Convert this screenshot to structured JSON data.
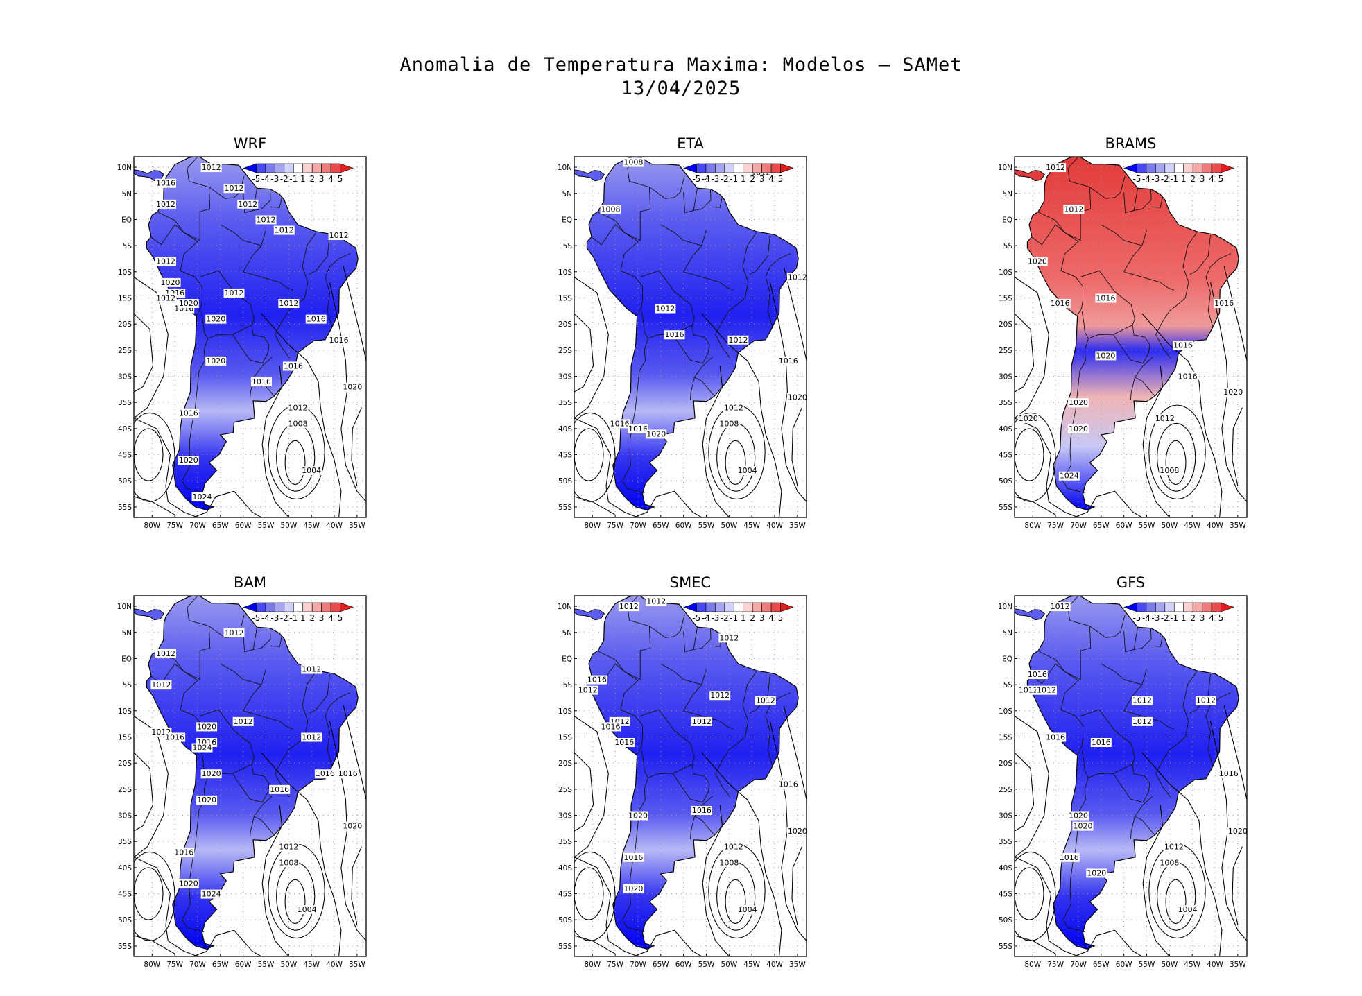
{
  "figure": {
    "title": "Anomalia de Temperatura Maxima: Modelos — SAMet",
    "date": "13/04/2025"
  },
  "colorbar": {
    "labels": [
      "-5",
      "-4",
      "-3",
      "-2",
      "-1",
      "1",
      "2",
      "3",
      "4",
      "5"
    ],
    "colors": [
      "#0000f0",
      "#4a4af4",
      "#7a7ae8",
      "#a6a6f0",
      "#d2d2fa",
      "#ffffff",
      "#fad2d2",
      "#f4a8a8",
      "#ee7c7c",
      "#e64c4c",
      "#e01e1e"
    ]
  },
  "axes": {
    "lon_ticks": [
      "80W",
      "75W",
      "70W",
      "65W",
      "60W",
      "55W",
      "50W",
      "45W",
      "40W",
      "35W"
    ],
    "lat_ticks": [
      "10N",
      "5N",
      "EQ",
      "5S",
      "10S",
      "15S",
      "20S",
      "25S",
      "30S",
      "35S",
      "40S",
      "45S",
      "50S",
      "55S"
    ]
  },
  "panels": [
    {
      "name": "WRF",
      "tone": "cool",
      "isobars": [
        {
          "label": "1012",
          "lon": -67,
          "lat": 10
        },
        {
          "label": "1016",
          "lon": -77,
          "lat": 7
        },
        {
          "label": "1012",
          "lon": -62,
          "lat": 6
        },
        {
          "label": "1012",
          "lon": -77,
          "lat": 3
        },
        {
          "label": "1012",
          "lon": -59,
          "lat": 3
        },
        {
          "label": "1012",
          "lon": -55,
          "lat": 0
        },
        {
          "label": "1012",
          "lon": -51,
          "lat": -2
        },
        {
          "label": "1012",
          "lon": -39,
          "lat": -3
        },
        {
          "label": "1012",
          "lon": -77,
          "lat": -8
        },
        {
          "label": "1020",
          "lon": -76,
          "lat": -12
        },
        {
          "label": "1016",
          "lon": -75,
          "lat": -14
        },
        {
          "label": "1012",
          "lon": -77,
          "lat": -15
        },
        {
          "label": "1012",
          "lon": -62,
          "lat": -14
        },
        {
          "label": "1016",
          "lon": -73,
          "lat": -17
        },
        {
          "label": "1020",
          "lon": -72,
          "lat": -16
        },
        {
          "label": "1020",
          "lon": -66,
          "lat": -19
        },
        {
          "label": "1012",
          "lon": -50,
          "lat": -16
        },
        {
          "label": "1016",
          "lon": -44,
          "lat": -19
        },
        {
          "label": "1016",
          "lon": -39,
          "lat": -23
        },
        {
          "label": "1020",
          "lon": -66,
          "lat": -27
        },
        {
          "label": "1016",
          "lon": -49,
          "lat": -28
        },
        {
          "label": "1016",
          "lon": -56,
          "lat": -31
        },
        {
          "label": "1020",
          "lon": -36,
          "lat": -32
        },
        {
          "label": "1012",
          "lon": -48,
          "lat": -36
        },
        {
          "label": "1016",
          "lon": -72,
          "lat": -37
        },
        {
          "label": "1008",
          "lon": -48,
          "lat": -39
        },
        {
          "label": "1020",
          "lon": -72,
          "lat": -46
        },
        {
          "label": "1004",
          "lon": -45,
          "lat": -48
        },
        {
          "label": "1024",
          "lon": -69,
          "lat": -53
        }
      ]
    },
    {
      "name": "ETA",
      "tone": "cool",
      "isobars": [
        {
          "label": "1008",
          "lon": -71,
          "lat": 11
        },
        {
          "label": "1012",
          "lon": -43,
          "lat": 9
        },
        {
          "label": "1008",
          "lon": -76,
          "lat": 2
        },
        {
          "label": "1012",
          "lon": -35,
          "lat": -11
        },
        {
          "label": "1012",
          "lon": -64,
          "lat": -17
        },
        {
          "label": "1016",
          "lon": -62,
          "lat": -22
        },
        {
          "label": "1012",
          "lon": -48,
          "lat": -23
        },
        {
          "label": "1016",
          "lon": -37,
          "lat": -27
        },
        {
          "label": "1020",
          "lon": -35,
          "lat": -34
        },
        {
          "label": "1012",
          "lon": -49,
          "lat": -36
        },
        {
          "label": "1016",
          "lon": -74,
          "lat": -39
        },
        {
          "label": "1008",
          "lon": -50,
          "lat": -39
        },
        {
          "label": "1016",
          "lon": -70,
          "lat": -40
        },
        {
          "label": "1020",
          "lon": -66,
          "lat": -41
        },
        {
          "label": "1004",
          "lon": -46,
          "lat": -48
        }
      ]
    },
    {
      "name": "BRAMS",
      "tone": "warm",
      "isobars": [
        {
          "label": "1012",
          "lon": -75,
          "lat": 10
        },
        {
          "label": "1012",
          "lon": -71,
          "lat": 2
        },
        {
          "label": "1020",
          "lon": -79,
          "lat": -8
        },
        {
          "label": "1016",
          "lon": -74,
          "lat": -16
        },
        {
          "label": "1016",
          "lon": -64,
          "lat": -15
        },
        {
          "label": "1016",
          "lon": -38,
          "lat": -16
        },
        {
          "label": "1020",
          "lon": -64,
          "lat": -26
        },
        {
          "label": "1016",
          "lon": -47,
          "lat": -24
        },
        {
          "label": "1016",
          "lon": -46,
          "lat": -30
        },
        {
          "label": "1020",
          "lon": -36,
          "lat": -33
        },
        {
          "label": "1020",
          "lon": -70,
          "lat": -35
        },
        {
          "label": "1020",
          "lon": -81,
          "lat": -38
        },
        {
          "label": "1012",
          "lon": -51,
          "lat": -38
        },
        {
          "label": "1020",
          "lon": -70,
          "lat": -40
        },
        {
          "label": "1024",
          "lon": -72,
          "lat": -49
        },
        {
          "label": "1008",
          "lon": -50,
          "lat": -48
        }
      ]
    },
    {
      "name": "BAM",
      "tone": "cool",
      "isobars": [
        {
          "label": "1012",
          "lon": -62,
          "lat": 5
        },
        {
          "label": "1012",
          "lon": -77,
          "lat": 1
        },
        {
          "label": "1012",
          "lon": -45,
          "lat": -2
        },
        {
          "label": "1012",
          "lon": -78,
          "lat": -5
        },
        {
          "label": "1020",
          "lon": -68,
          "lat": -13
        },
        {
          "label": "1012",
          "lon": -60,
          "lat": -12
        },
        {
          "label": "1012",
          "lon": -78,
          "lat": -14
        },
        {
          "label": "1016",
          "lon": -75,
          "lat": -15
        },
        {
          "label": "1012",
          "lon": -45,
          "lat": -15
        },
        {
          "label": "1016",
          "lon": -68,
          "lat": -16
        },
        {
          "label": "1024",
          "lon": -69,
          "lat": -17
        },
        {
          "label": "1020",
          "lon": -67,
          "lat": -22
        },
        {
          "label": "1016",
          "lon": -42,
          "lat": -22
        },
        {
          "label": "1016",
          "lon": -37,
          "lat": -22
        },
        {
          "label": "1016",
          "lon": -52,
          "lat": -25
        },
        {
          "label": "1020",
          "lon": -68,
          "lat": -27
        },
        {
          "label": "1020",
          "lon": -36,
          "lat": -32
        },
        {
          "label": "1012",
          "lon": -50,
          "lat": -36
        },
        {
          "label": "1016",
          "lon": -73,
          "lat": -37
        },
        {
          "label": "1008",
          "lon": -50,
          "lat": -39
        },
        {
          "label": "1020",
          "lon": -72,
          "lat": -43
        },
        {
          "label": "1024",
          "lon": -67,
          "lat": -45
        },
        {
          "label": "1004",
          "lon": -46,
          "lat": -48
        }
      ]
    },
    {
      "name": "SMEC",
      "tone": "cool",
      "isobars": [
        {
          "label": "1012",
          "lon": -66,
          "lat": 11
        },
        {
          "label": "1012",
          "lon": -72,
          "lat": 10
        },
        {
          "label": "1012",
          "lon": -50,
          "lat": 4
        },
        {
          "label": "1016",
          "lon": -79,
          "lat": -4
        },
        {
          "label": "1012",
          "lon": -81,
          "lat": -6
        },
        {
          "label": "1012",
          "lon": -52,
          "lat": -7
        },
        {
          "label": "1012",
          "lon": -42,
          "lat": -8
        },
        {
          "label": "1012",
          "lon": -56,
          "lat": -12
        },
        {
          "label": "1012",
          "lon": -74,
          "lat": -12
        },
        {
          "label": "1016",
          "lon": -76,
          "lat": -13
        },
        {
          "label": "1016",
          "lon": -73,
          "lat": -16
        },
        {
          "label": "1016",
          "lon": -37,
          "lat": -24
        },
        {
          "label": "1016",
          "lon": -56,
          "lat": -29
        },
        {
          "label": "1020",
          "lon": -70,
          "lat": -30
        },
        {
          "label": "1020",
          "lon": -35,
          "lat": -33
        },
        {
          "label": "1012",
          "lon": -49,
          "lat": -36
        },
        {
          "label": "1016",
          "lon": -71,
          "lat": -38
        },
        {
          "label": "1008",
          "lon": -50,
          "lat": -39
        },
        {
          "label": "1020",
          "lon": -71,
          "lat": -44
        },
        {
          "label": "1004",
          "lon": -46,
          "lat": -48
        }
      ]
    },
    {
      "name": "GFS",
      "tone": "cool",
      "isobars": [
        {
          "label": "1012",
          "lon": -74,
          "lat": 10
        },
        {
          "label": "1016",
          "lon": -79,
          "lat": -3
        },
        {
          "label": "1012",
          "lon": -81,
          "lat": -6
        },
        {
          "label": "1012",
          "lon": -77,
          "lat": -6
        },
        {
          "label": "1012",
          "lon": -56,
          "lat": -8
        },
        {
          "label": "1012",
          "lon": -42,
          "lat": -8
        },
        {
          "label": "1012",
          "lon": -56,
          "lat": -12
        },
        {
          "label": "1016",
          "lon": -75,
          "lat": -15
        },
        {
          "label": "1016",
          "lon": -65,
          "lat": -16
        },
        {
          "label": "1016",
          "lon": -37,
          "lat": -22
        },
        {
          "label": "1020",
          "lon": -70,
          "lat": -30
        },
        {
          "label": "1020",
          "lon": -69,
          "lat": -32
        },
        {
          "label": "1020",
          "lon": -35,
          "lat": -33
        },
        {
          "label": "1012",
          "lon": -49,
          "lat": -36
        },
        {
          "label": "1016",
          "lon": -72,
          "lat": -38
        },
        {
          "label": "1008",
          "lon": -50,
          "lat": -39
        },
        {
          "label": "1020",
          "lon": -66,
          "lat": -41
        },
        {
          "label": "1004",
          "lon": -46,
          "lat": -48
        }
      ]
    }
  ]
}
